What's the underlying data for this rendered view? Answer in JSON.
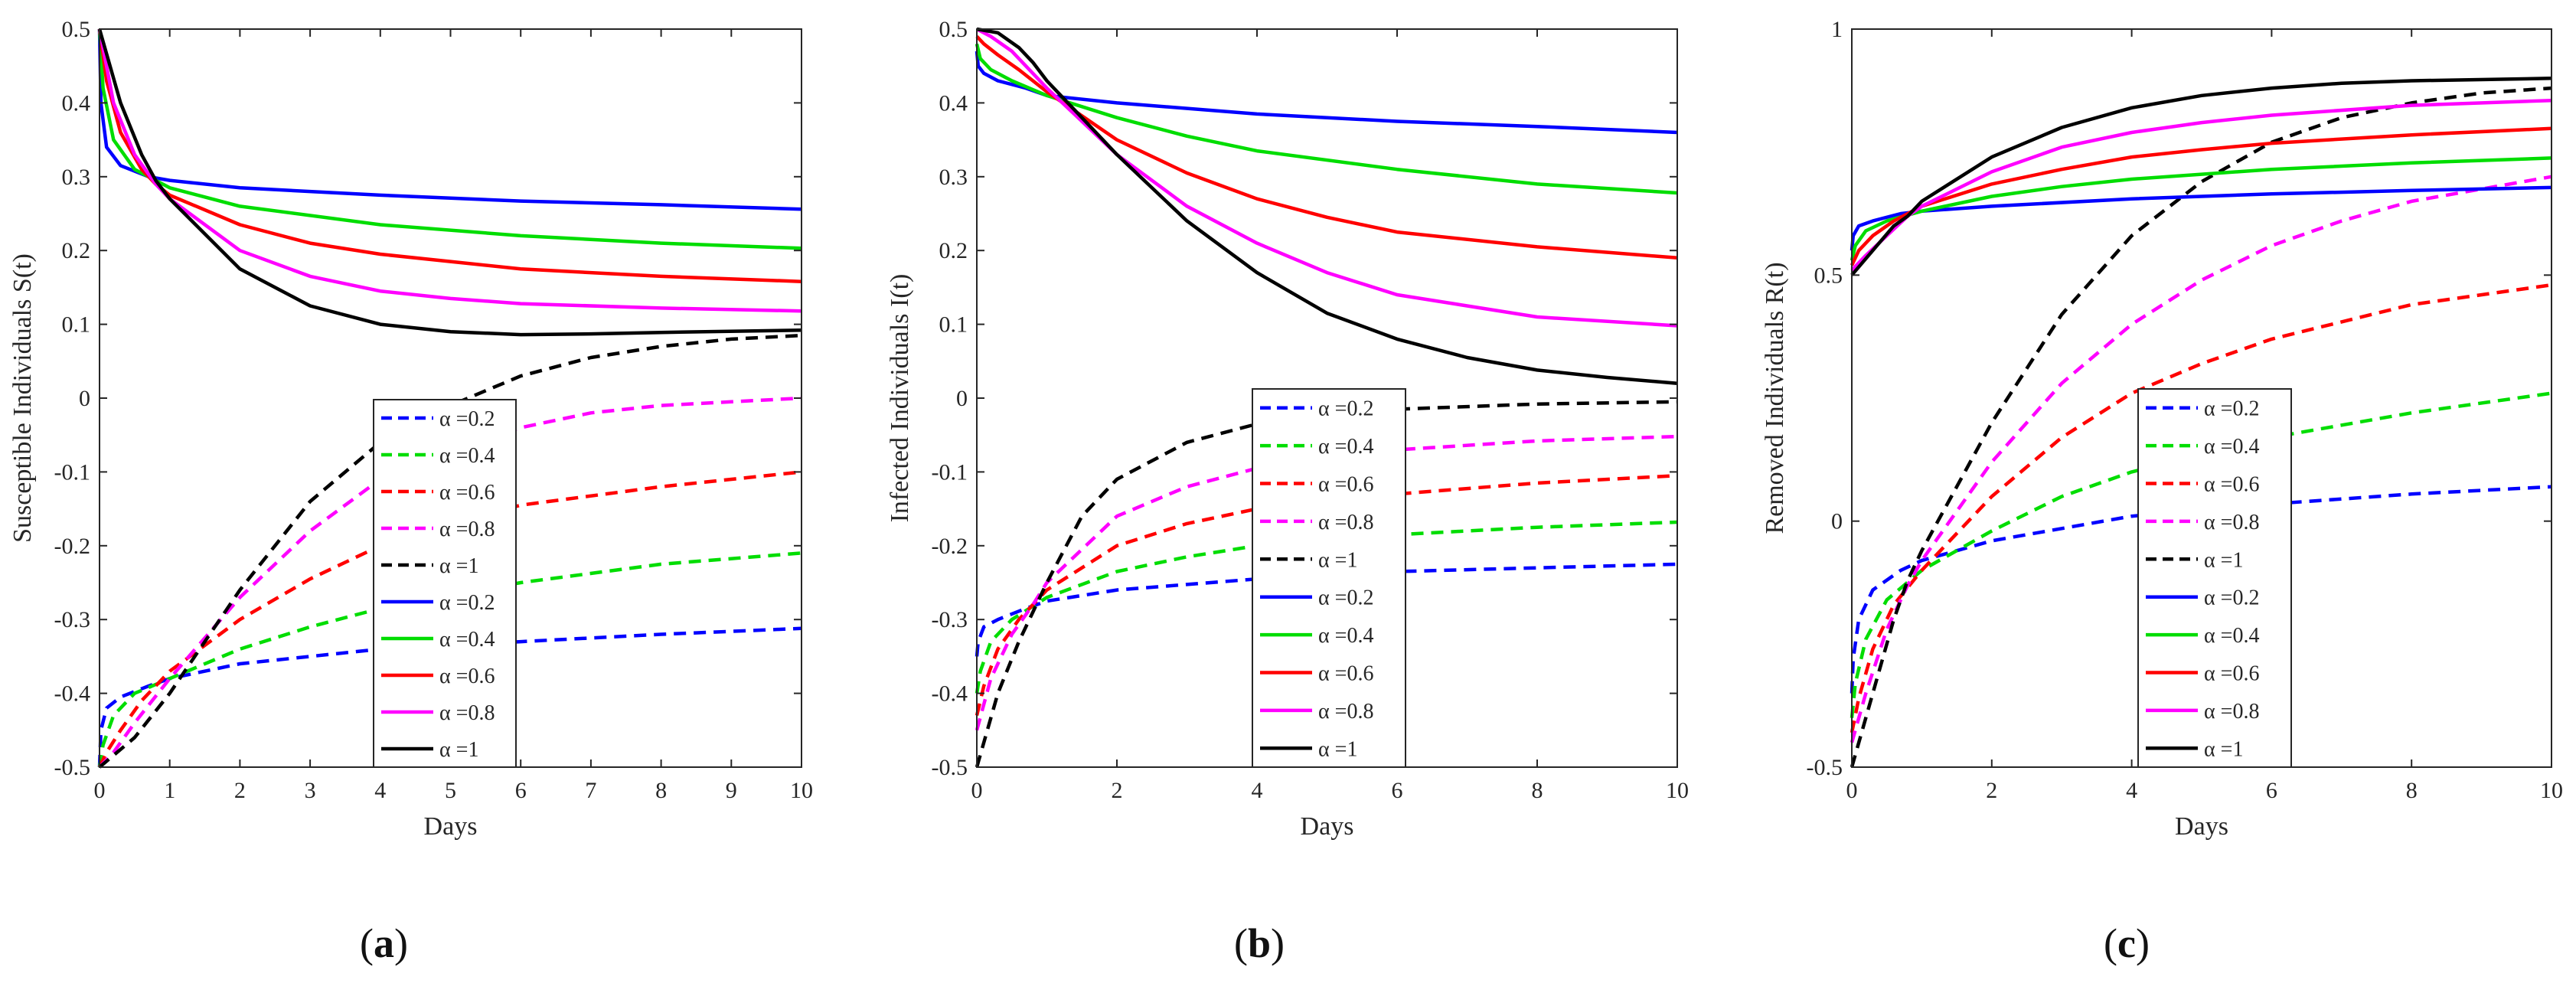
{
  "chart_data": [
    {
      "type": "line",
      "panel_label": "a",
      "xlabel": "Days",
      "ylabel": "Susceptible Individuals S(t)",
      "xlim": [
        0,
        10
      ],
      "ylim": [
        -0.5,
        0.5
      ],
      "xticks": [
        0,
        1,
        2,
        3,
        4,
        5,
        6,
        7,
        8,
        9,
        10
      ],
      "xtick_labels": [
        "0",
        "1",
        "2",
        "3",
        "4",
        "5",
        "6",
        "7",
        "8",
        "9",
        "10"
      ],
      "yticks": [
        -0.5,
        -0.4,
        -0.3,
        -0.2,
        -0.1,
        0,
        0.1,
        0.2,
        0.3,
        0.4,
        0.5
      ],
      "ytick_labels": [
        "-0.5",
        "-0.4",
        "-0.3",
        "-0.2",
        "-0.1",
        "0",
        "0.1",
        "0.2",
        "0.3",
        "0.4",
        "0.5"
      ],
      "legend_position": "center-lower",
      "series": [
        {
          "name": "α =0.2",
          "style": "dashed",
          "color": "#0000ff",
          "x": [
            0,
            0.02,
            0.1,
            0.3,
            0.7,
            1,
            2,
            4,
            6,
            8,
            10
          ],
          "y": [
            -0.5,
            -0.45,
            -0.42,
            -0.405,
            -0.39,
            -0.38,
            -0.36,
            -0.34,
            -0.33,
            -0.32,
            -0.312
          ]
        },
        {
          "name": "α =0.4",
          "style": "dashed",
          "color": "#00dd00",
          "x": [
            0,
            0.05,
            0.2,
            0.5,
            1,
            2,
            3,
            4,
            6,
            8,
            10
          ],
          "y": [
            -0.5,
            -0.47,
            -0.43,
            -0.4,
            -0.38,
            -0.34,
            -0.31,
            -0.285,
            -0.25,
            -0.225,
            -0.21
          ]
        },
        {
          "name": "α =0.6",
          "style": "dashed",
          "color": "#ff0000",
          "x": [
            0,
            0.1,
            0.3,
            0.6,
            1,
            2,
            3,
            4,
            5,
            6,
            8,
            10
          ],
          "y": [
            -0.5,
            -0.48,
            -0.45,
            -0.41,
            -0.37,
            -0.3,
            -0.245,
            -0.2,
            -0.17,
            -0.145,
            -0.12,
            -0.1
          ]
        },
        {
          "name": "α =0.8",
          "style": "dashed",
          "color": "#ff00ff",
          "x": [
            0,
            0.2,
            0.5,
            1,
            2,
            3,
            4,
            5,
            6,
            7,
            8,
            10
          ],
          "y": [
            -0.5,
            -0.48,
            -0.44,
            -0.38,
            -0.27,
            -0.18,
            -0.11,
            -0.07,
            -0.04,
            -0.02,
            -0.01,
            0.0
          ]
        },
        {
          "name": "α =1",
          "style": "dashed",
          "color": "#000000",
          "x": [
            0,
            0.5,
            1,
            2,
            3,
            4,
            5,
            6,
            7,
            8,
            9,
            10
          ],
          "y": [
            -0.5,
            -0.46,
            -0.4,
            -0.26,
            -0.14,
            -0.06,
            -0.01,
            0.03,
            0.055,
            0.07,
            0.08,
            0.085
          ]
        },
        {
          "name": "α =0.2",
          "style": "solid",
          "color": "#0000ff",
          "x": [
            0,
            0.02,
            0.1,
            0.3,
            0.7,
            1,
            2,
            4,
            6,
            8,
            10
          ],
          "y": [
            0.5,
            0.4,
            0.34,
            0.315,
            0.3,
            0.295,
            0.285,
            0.275,
            0.267,
            0.262,
            0.256
          ]
        },
        {
          "name": "α =0.4",
          "style": "solid",
          "color": "#00dd00",
          "x": [
            0,
            0.05,
            0.2,
            0.5,
            0.8,
            1,
            2,
            4,
            6,
            8,
            10
          ],
          "y": [
            0.5,
            0.42,
            0.35,
            0.31,
            0.295,
            0.285,
            0.26,
            0.235,
            0.22,
            0.21,
            0.203
          ]
        },
        {
          "name": "α =0.6",
          "style": "solid",
          "color": "#ff0000",
          "x": [
            0,
            0.1,
            0.3,
            0.6,
            0.8,
            1,
            2,
            3,
            4,
            6,
            8,
            10
          ],
          "y": [
            0.5,
            0.43,
            0.36,
            0.31,
            0.29,
            0.275,
            0.235,
            0.21,
            0.195,
            0.175,
            0.165,
            0.158
          ]
        },
        {
          "name": "α =0.8",
          "style": "solid",
          "color": "#ff00ff",
          "x": [
            0,
            0.2,
            0.5,
            0.8,
            1,
            2,
            3,
            4,
            5,
            6,
            8,
            10
          ],
          "y": [
            0.5,
            0.4,
            0.33,
            0.29,
            0.27,
            0.2,
            0.165,
            0.145,
            0.135,
            0.128,
            0.122,
            0.118
          ]
        },
        {
          "name": "α =1",
          "style": "solid",
          "color": "#000000",
          "x": [
            0,
            0.3,
            0.6,
            0.8,
            1,
            2,
            3,
            4,
            5,
            6,
            7,
            8,
            10
          ],
          "y": [
            0.5,
            0.4,
            0.33,
            0.295,
            0.27,
            0.175,
            0.125,
            0.1,
            0.09,
            0.086,
            0.087,
            0.089,
            0.092
          ]
        }
      ]
    },
    {
      "type": "line",
      "panel_label": "b",
      "xlabel": "Days",
      "ylabel": "Infected Individuals I(t)",
      "xlim": [
        0,
        10
      ],
      "ylim": [
        -0.5,
        0.5
      ],
      "xticks": [
        0,
        2,
        4,
        6,
        8,
        10
      ],
      "xtick_labels": [
        "0",
        "2",
        "4",
        "6",
        "8",
        "10"
      ],
      "yticks": [
        -0.5,
        -0.4,
        -0.3,
        -0.2,
        -0.1,
        0,
        0.1,
        0.2,
        0.3,
        0.4,
        0.5
      ],
      "ytick_labels": [
        "-0.5",
        "-0.4",
        "-0.3",
        "-0.2",
        "-0.1",
        "0",
        "0.1",
        "0.2",
        "0.3",
        "0.4",
        "0.5"
      ],
      "legend_position": "center-lower",
      "series": [
        {
          "name": "α =0.2",
          "style": "dashed",
          "color": "#0000ff",
          "x": [
            0,
            0.02,
            0.1,
            0.3,
            0.7,
            1,
            2,
            4,
            6,
            8,
            10
          ],
          "y": [
            -0.35,
            -0.33,
            -0.31,
            -0.3,
            -0.285,
            -0.275,
            -0.26,
            -0.245,
            -0.235,
            -0.23,
            -0.225
          ]
        },
        {
          "name": "α =0.4",
          "style": "dashed",
          "color": "#00dd00",
          "x": [
            0,
            0.05,
            0.2,
            0.5,
            1,
            2,
            3,
            4,
            6,
            8,
            10
          ],
          "y": [
            -0.4,
            -0.37,
            -0.33,
            -0.3,
            -0.27,
            -0.235,
            -0.215,
            -0.2,
            -0.185,
            -0.175,
            -0.168
          ]
        },
        {
          "name": "α =0.6",
          "style": "dashed",
          "color": "#ff0000",
          "x": [
            0,
            0.1,
            0.3,
            0.6,
            1,
            2,
            3,
            4,
            6,
            8,
            10
          ],
          "y": [
            -0.43,
            -0.39,
            -0.34,
            -0.3,
            -0.26,
            -0.2,
            -0.17,
            -0.15,
            -0.13,
            -0.115,
            -0.105
          ]
        },
        {
          "name": "α =0.8",
          "style": "dashed",
          "color": "#ff00ff",
          "x": [
            0,
            0.2,
            0.5,
            0.8,
            1,
            2,
            3,
            4,
            6,
            8,
            10
          ],
          "y": [
            -0.45,
            -0.38,
            -0.32,
            -0.28,
            -0.25,
            -0.16,
            -0.12,
            -0.095,
            -0.07,
            -0.058,
            -0.052
          ]
        },
        {
          "name": "α =1",
          "style": "dashed",
          "color": "#000000",
          "x": [
            0,
            0.3,
            0.6,
            0.8,
            1,
            1.5,
            2,
            3,
            4,
            6,
            8,
            10
          ],
          "y": [
            -0.5,
            -0.4,
            -0.33,
            -0.29,
            -0.25,
            -0.16,
            -0.11,
            -0.06,
            -0.035,
            -0.015,
            -0.008,
            -0.005
          ]
        },
        {
          "name": "α =0.2",
          "style": "solid",
          "color": "#0000ff",
          "x": [
            0,
            0.02,
            0.1,
            0.3,
            0.7,
            1,
            2,
            4,
            6,
            8,
            10
          ],
          "y": [
            0.47,
            0.45,
            0.44,
            0.43,
            0.42,
            0.41,
            0.4,
            0.385,
            0.375,
            0.368,
            0.36
          ]
        },
        {
          "name": "α =0.4",
          "style": "solid",
          "color": "#00dd00",
          "x": [
            0,
            0.05,
            0.2,
            0.5,
            1,
            2,
            3,
            4,
            6,
            8,
            10
          ],
          "y": [
            0.48,
            0.46,
            0.445,
            0.43,
            0.41,
            0.38,
            0.355,
            0.335,
            0.31,
            0.29,
            0.278
          ]
        },
        {
          "name": "α =0.6",
          "style": "solid",
          "color": "#ff0000",
          "x": [
            0,
            0.1,
            0.3,
            0.6,
            1,
            2,
            3,
            4,
            5,
            6,
            8,
            10
          ],
          "y": [
            0.49,
            0.48,
            0.465,
            0.445,
            0.415,
            0.35,
            0.305,
            0.27,
            0.245,
            0.225,
            0.205,
            0.19
          ]
        },
        {
          "name": "α =0.8",
          "style": "solid",
          "color": "#ff00ff",
          "x": [
            0,
            0.2,
            0.5,
            0.8,
            1,
            2,
            3,
            4,
            5,
            6,
            8,
            10
          ],
          "y": [
            0.5,
            0.49,
            0.47,
            0.44,
            0.42,
            0.33,
            0.26,
            0.21,
            0.17,
            0.14,
            0.11,
            0.098
          ]
        },
        {
          "name": "α =1",
          "style": "solid",
          "color": "#000000",
          "x": [
            0,
            0.3,
            0.6,
            0.8,
            1,
            2,
            3,
            4,
            5,
            6,
            7,
            8,
            9,
            10
          ],
          "y": [
            0.5,
            0.495,
            0.475,
            0.455,
            0.43,
            0.33,
            0.24,
            0.17,
            0.115,
            0.08,
            0.055,
            0.038,
            0.028,
            0.02
          ]
        }
      ]
    },
    {
      "type": "line",
      "panel_label": "c",
      "xlabel": "Days",
      "ylabel": "Removed Individuals R(t)",
      "xlim": [
        0,
        10
      ],
      "ylim": [
        -0.5,
        1
      ],
      "xticks": [
        0,
        2,
        4,
        6,
        8,
        10
      ],
      "xtick_labels": [
        "0",
        "2",
        "4",
        "6",
        "8",
        "10"
      ],
      "yticks": [
        -0.5,
        0,
        0.5,
        1
      ],
      "ytick_labels": [
        "-0.5",
        "0",
        "0.5",
        "1"
      ],
      "legend_position": "center-lower",
      "series": [
        {
          "name": "α =0.2",
          "style": "dashed",
          "color": "#0000ff",
          "x": [
            0,
            0.02,
            0.1,
            0.3,
            0.7,
            1,
            2,
            4,
            6,
            8,
            10
          ],
          "y": [
            -0.35,
            -0.28,
            -0.2,
            -0.14,
            -0.1,
            -0.08,
            -0.04,
            0.01,
            0.035,
            0.055,
            0.07
          ]
        },
        {
          "name": "α =0.4",
          "style": "dashed",
          "color": "#00dd00",
          "x": [
            0,
            0.05,
            0.2,
            0.5,
            1,
            2,
            3,
            4,
            6,
            8,
            10
          ],
          "y": [
            -0.4,
            -0.33,
            -0.24,
            -0.16,
            -0.1,
            -0.02,
            0.05,
            0.1,
            0.17,
            0.22,
            0.26
          ]
        },
        {
          "name": "α =0.6",
          "style": "dashed",
          "color": "#ff0000",
          "x": [
            0,
            0.1,
            0.3,
            0.6,
            1,
            2,
            3,
            4,
            5,
            6,
            8,
            10
          ],
          "y": [
            -0.43,
            -0.36,
            -0.26,
            -0.17,
            -0.1,
            0.05,
            0.17,
            0.26,
            0.32,
            0.37,
            0.44,
            0.48
          ]
        },
        {
          "name": "α =0.8",
          "style": "dashed",
          "color": "#ff00ff",
          "x": [
            0,
            0.2,
            0.5,
            0.8,
            1,
            2,
            3,
            4,
            5,
            6,
            7,
            8,
            10
          ],
          "y": [
            -0.45,
            -0.35,
            -0.22,
            -0.13,
            -0.08,
            0.12,
            0.28,
            0.4,
            0.49,
            0.56,
            0.61,
            0.65,
            0.7
          ]
        },
        {
          "name": "α =1",
          "style": "dashed",
          "color": "#000000",
          "x": [
            0,
            0.3,
            0.6,
            0.8,
            1,
            2,
            3,
            4,
            5,
            6,
            7,
            8,
            9,
            10
          ],
          "y": [
            -0.5,
            -0.35,
            -0.2,
            -0.12,
            -0.06,
            0.2,
            0.42,
            0.58,
            0.69,
            0.77,
            0.82,
            0.85,
            0.87,
            0.88
          ]
        },
        {
          "name": "α =0.2",
          "style": "solid",
          "color": "#0000ff",
          "x": [
            0,
            0.02,
            0.1,
            0.3,
            0.7,
            1,
            2,
            4,
            6,
            8,
            10
          ],
          "y": [
            0.55,
            0.58,
            0.6,
            0.61,
            0.625,
            0.63,
            0.64,
            0.655,
            0.665,
            0.672,
            0.678
          ]
        },
        {
          "name": "α =0.4",
          "style": "solid",
          "color": "#00dd00",
          "x": [
            0,
            0.05,
            0.2,
            0.5,
            1,
            2,
            3,
            4,
            6,
            8,
            10
          ],
          "y": [
            0.53,
            0.56,
            0.59,
            0.61,
            0.63,
            0.66,
            0.68,
            0.695,
            0.715,
            0.728,
            0.738
          ]
        },
        {
          "name": "α =0.6",
          "style": "solid",
          "color": "#ff0000",
          "x": [
            0,
            0.1,
            0.3,
            0.6,
            1,
            2,
            3,
            4,
            5,
            6,
            8,
            10
          ],
          "y": [
            0.52,
            0.55,
            0.58,
            0.61,
            0.64,
            0.685,
            0.715,
            0.74,
            0.755,
            0.768,
            0.785,
            0.798
          ]
        },
        {
          "name": "α =0.8",
          "style": "solid",
          "color": "#ff00ff",
          "x": [
            0,
            0.2,
            0.5,
            0.8,
            1,
            2,
            3,
            4,
            5,
            6,
            8,
            10
          ],
          "y": [
            0.51,
            0.54,
            0.58,
            0.62,
            0.64,
            0.71,
            0.76,
            0.79,
            0.81,
            0.825,
            0.845,
            0.855
          ]
        },
        {
          "name": "α =1",
          "style": "solid",
          "color": "#000000",
          "x": [
            0,
            0.3,
            0.6,
            0.8,
            1,
            2,
            3,
            4,
            5,
            6,
            7,
            8,
            10
          ],
          "y": [
            0.5,
            0.55,
            0.6,
            0.62,
            0.65,
            0.74,
            0.8,
            0.84,
            0.865,
            0.88,
            0.89,
            0.895,
            0.9
          ]
        }
      ]
    }
  ]
}
